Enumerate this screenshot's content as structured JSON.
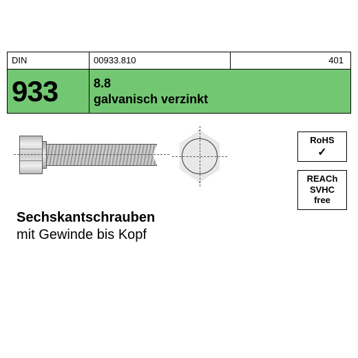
{
  "header": {
    "din_label": "DIN",
    "code": "00933.810",
    "right_code": "401"
  },
  "band": {
    "din_number": "933",
    "grade": "8.8",
    "finish": "galvanisch verzinkt",
    "band_color": "#73c773"
  },
  "badges": {
    "rohs_label": "RoHS",
    "rohs_check": "✓",
    "reach_l1": "REACh",
    "reach_l2": "SVHC",
    "reach_l3": "free"
  },
  "description": {
    "line1": "Sechskantschrauben",
    "line2": "mit Gewinde bis Kopf"
  }
}
